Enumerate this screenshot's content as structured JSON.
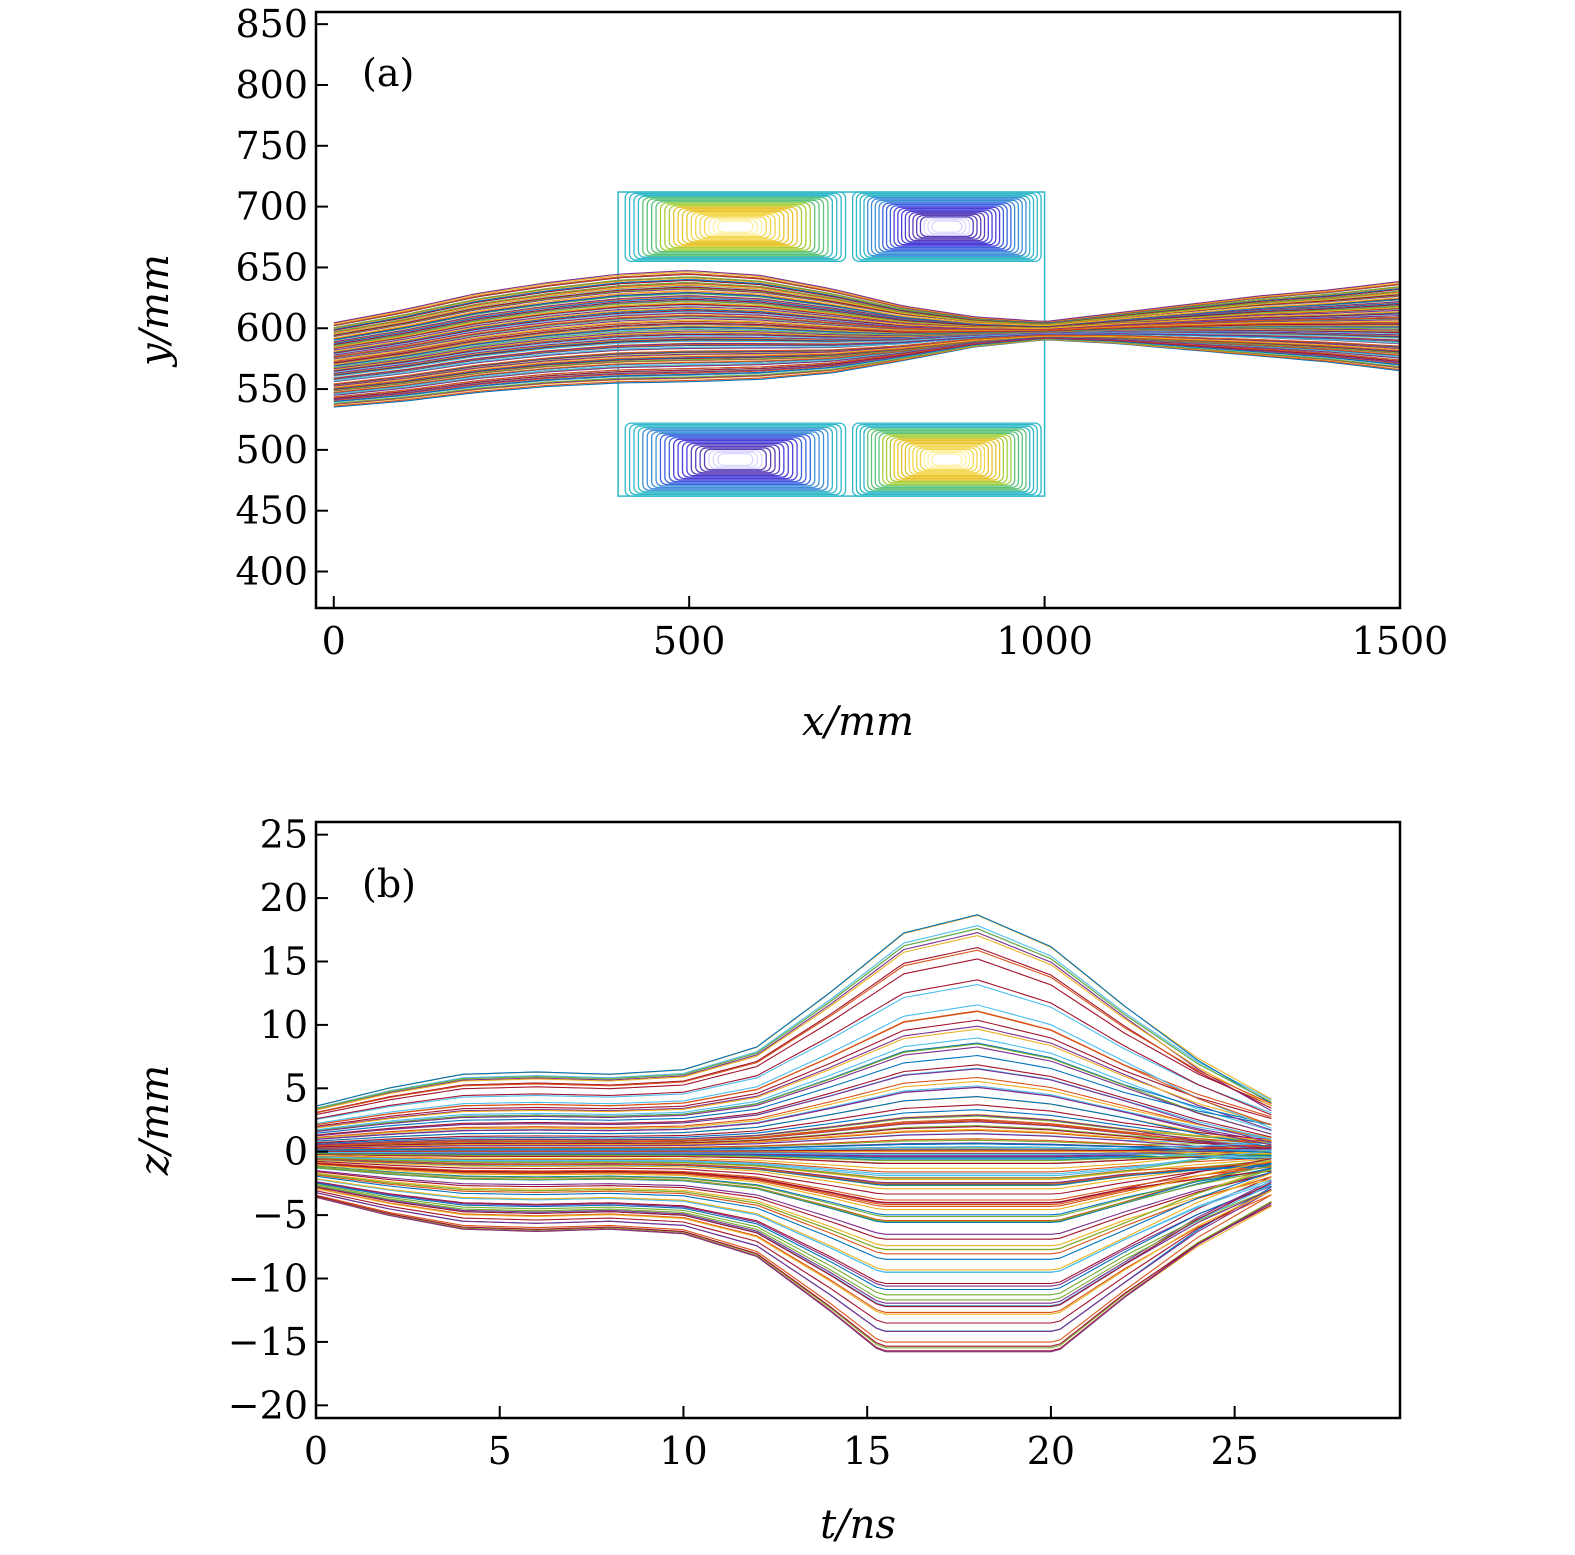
{
  "chart_data": [
    {
      "type": "line",
      "panel_label": "(a)",
      "xlabel": "x/mm",
      "ylabel": "y/mm",
      "xlim": [
        -25,
        1500
      ],
      "ylim": [
        370,
        860
      ],
      "xticks": [
        0,
        500,
        1000,
        1500
      ],
      "yticks": [
        400,
        450,
        500,
        550,
        600,
        650,
        700,
        750,
        800,
        850
      ],
      "grid": false,
      "trajectory_bundle": {
        "x": [
          0,
          100,
          200,
          300,
          400,
          500,
          600,
          700,
          800,
          900,
          1000,
          1100,
          1200,
          1300,
          1400,
          1500
        ],
        "center_y": [
          570,
          578,
          588,
          595,
          600,
          602,
          601,
          598,
          596,
          597,
          598,
          600,
          601,
          602,
          602,
          602
        ],
        "half_spread": [
          34,
          37,
          40,
          42,
          44,
          45,
          42,
          34,
          22,
          12,
          7,
          12,
          18,
          24,
          29,
          36
        ],
        "line_count": 130
      },
      "contour_rectangles": [
        {
          "name": "upper-left magnet",
          "x": [
            410,
            720
          ],
          "y": [
            655,
            712
          ],
          "polarity": "positive"
        },
        {
          "name": "upper-right magnet",
          "x": [
            730,
            995
          ],
          "y": [
            655,
            712
          ],
          "polarity": "negative"
        },
        {
          "name": "lower-left magnet",
          "x": [
            410,
            720
          ],
          "y": [
            462,
            522
          ],
          "polarity": "negative"
        },
        {
          "name": "lower-right magnet",
          "x": [
            730,
            995
          ],
          "y": [
            462,
            522
          ],
          "polarity": "positive"
        }
      ],
      "field_region": {
        "x": [
          400,
          1000
        ],
        "y": [
          462,
          712
        ]
      }
    },
    {
      "type": "line",
      "panel_label": "(b)",
      "xlabel": "t/ns",
      "ylabel": "z/mm",
      "xlim": [
        0,
        29.5
      ],
      "ylim": [
        -21,
        26
      ],
      "xticks": [
        0,
        5,
        10,
        15,
        20,
        25
      ],
      "yticks": [
        -20,
        -15,
        -10,
        -5,
        0,
        5,
        10,
        15,
        20,
        25
      ],
      "grid": false,
      "trajectory_bundle": {
        "t": [
          0,
          2,
          4,
          6,
          8,
          10,
          12,
          14,
          16,
          18,
          20,
          22,
          24,
          26.1
        ],
        "amplitude_profile": [
          1.0,
          1.4,
          1.7,
          1.75,
          1.7,
          1.8,
          2.3,
          3.5,
          4.8,
          5.2,
          4.5,
          3.2,
          2.0,
          1.0
        ],
        "initial_z_range": [
          -3.6,
          3.6
        ],
        "max_z": 18.8,
        "min_z": -15.8,
        "line_count": 140
      }
    }
  ],
  "colors": {
    "series_cycle": [
      "#0072bd",
      "#d95319",
      "#edb120",
      "#7e2f8e",
      "#77ac30",
      "#4dbeee",
      "#a2142f"
    ],
    "contour_positive": [
      "#2eb8c8",
      "#5cc47a",
      "#a6cf3a",
      "#e8c32b",
      "#f3d64a",
      "#fff0a0"
    ],
    "contour_negative": [
      "#2eb8c8",
      "#3d8fd8",
      "#3b62e0",
      "#4a3fd8",
      "#5a3fb8",
      "#dcd8ff"
    ]
  }
}
